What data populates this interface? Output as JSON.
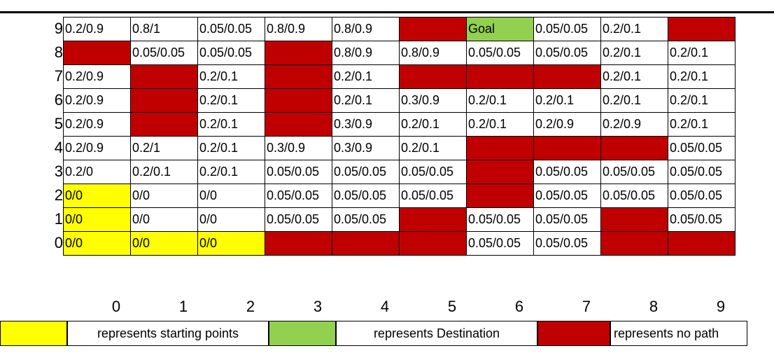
{
  "colors": {
    "start": "#ffff00",
    "goal": "#92d050",
    "blocked": "#c00000",
    "empty": "#ffffff"
  },
  "grid": {
    "row_labels": [
      "9",
      "8",
      "7",
      "6",
      "5",
      "4",
      "3",
      "2",
      "1",
      "0"
    ],
    "col_labels": [
      "0",
      "1",
      "2",
      "3",
      "4",
      "5",
      "6",
      "7",
      "8",
      "9"
    ],
    "rows": [
      [
        {
          "t": "0.2/0.9",
          "k": "n"
        },
        {
          "t": "0.8/1",
          "k": "n"
        },
        {
          "t": "0.05/0.05",
          "k": "n"
        },
        {
          "t": "0.8/0.9",
          "k": "n"
        },
        {
          "t": "0.8/0.9",
          "k": "n"
        },
        {
          "t": "",
          "k": "b"
        },
        {
          "t": "Goal",
          "k": "g"
        },
        {
          "t": "0.05/0.05",
          "k": "n"
        },
        {
          "t": "0.2/0.1",
          "k": "n"
        },
        {
          "t": "",
          "k": "b"
        }
      ],
      [
        {
          "t": "",
          "k": "b"
        },
        {
          "t": "0.05/0.05",
          "k": "n"
        },
        {
          "t": "0.05/0.05",
          "k": "n"
        },
        {
          "t": "",
          "k": "b"
        },
        {
          "t": "0.8/0.9",
          "k": "n"
        },
        {
          "t": "0.8/0.9",
          "k": "n"
        },
        {
          "t": "0.05/0.05",
          "k": "n"
        },
        {
          "t": "0.05/0.05",
          "k": "n"
        },
        {
          "t": "0.2/0.1",
          "k": "n"
        },
        {
          "t": "0.2/0.1",
          "k": "n"
        }
      ],
      [
        {
          "t": "0.2/0.9",
          "k": "n"
        },
        {
          "t": "",
          "k": "b"
        },
        {
          "t": "0.2/0.1",
          "k": "n"
        },
        {
          "t": "",
          "k": "b"
        },
        {
          "t": "0.2/0.1",
          "k": "n"
        },
        {
          "t": "",
          "k": "b"
        },
        {
          "t": "",
          "k": "b"
        },
        {
          "t": "",
          "k": "b"
        },
        {
          "t": "0.2/0.1",
          "k": "n"
        },
        {
          "t": "0.2/0.1",
          "k": "n"
        }
      ],
      [
        {
          "t": "0.2/0.9",
          "k": "n"
        },
        {
          "t": "",
          "k": "b"
        },
        {
          "t": "0.2/0.1",
          "k": "n"
        },
        {
          "t": "",
          "k": "b"
        },
        {
          "t": "0.2/0.1",
          "k": "n"
        },
        {
          "t": "0.3/0.9",
          "k": "n"
        },
        {
          "t": "0.2/0.1",
          "k": "n"
        },
        {
          "t": "0.2/0.1",
          "k": "n"
        },
        {
          "t": "0.2/0.1",
          "k": "n"
        },
        {
          "t": "0.2/0.1",
          "k": "n"
        }
      ],
      [
        {
          "t": "0.2/0.9",
          "k": "n"
        },
        {
          "t": "",
          "k": "b"
        },
        {
          "t": "0.2/0.1",
          "k": "n"
        },
        {
          "t": "",
          "k": "b"
        },
        {
          "t": "0.3/0.9",
          "k": "n"
        },
        {
          "t": "0.2/0.1",
          "k": "n"
        },
        {
          "t": "0.2/0.1",
          "k": "n"
        },
        {
          "t": "0.2/0.9",
          "k": "n"
        },
        {
          "t": "0.2/0.9",
          "k": "n"
        },
        {
          "t": "0.2/0.1",
          "k": "n"
        }
      ],
      [
        {
          "t": "0.2/0.9",
          "k": "n"
        },
        {
          "t": "0.2/1",
          "k": "n"
        },
        {
          "t": "0.2/0.1",
          "k": "n"
        },
        {
          "t": "0.3/0.9",
          "k": "n"
        },
        {
          "t": "0.3/0.9",
          "k": "n"
        },
        {
          "t": "0.2/0.1",
          "k": "n"
        },
        {
          "t": "",
          "k": "b"
        },
        {
          "t": "",
          "k": "b"
        },
        {
          "t": "",
          "k": "b"
        },
        {
          "t": "0.05/0.05",
          "k": "n"
        }
      ],
      [
        {
          "t": "0.2/0",
          "k": "n"
        },
        {
          "t": "0.2/0.1",
          "k": "n"
        },
        {
          "t": "0.2/0.1",
          "k": "n"
        },
        {
          "t": "0.05/0.05",
          "k": "n"
        },
        {
          "t": "0.05/0.05",
          "k": "n"
        },
        {
          "t": "0.05/0.05",
          "k": "n"
        },
        {
          "t": "",
          "k": "b"
        },
        {
          "t": "0.05/0.05",
          "k": "n"
        },
        {
          "t": "0.05/0.05",
          "k": "n"
        },
        {
          "t": "0.05/0.05",
          "k": "n"
        }
      ],
      [
        {
          "t": "0/0",
          "k": "s"
        },
        {
          "t": "0/0",
          "k": "n"
        },
        {
          "t": "0/0",
          "k": "n"
        },
        {
          "t": "0.05/0.05",
          "k": "n"
        },
        {
          "t": "0.05/0.05",
          "k": "n"
        },
        {
          "t": "0.05/0.05",
          "k": "n"
        },
        {
          "t": "",
          "k": "b"
        },
        {
          "t": "0.05/0.05",
          "k": "n"
        },
        {
          "t": "0.05/0.05",
          "k": "n"
        },
        {
          "t": "0.05/0.05",
          "k": "n"
        }
      ],
      [
        {
          "t": "0/0",
          "k": "s"
        },
        {
          "t": "0/0",
          "k": "n"
        },
        {
          "t": "0/0",
          "k": "n"
        },
        {
          "t": "0.05/0.05",
          "k": "n"
        },
        {
          "t": "0.05/0.05",
          "k": "n"
        },
        {
          "t": "",
          "k": "b"
        },
        {
          "t": "0.05/0.05",
          "k": "n"
        },
        {
          "t": "0.05/0.05",
          "k": "n"
        },
        {
          "t": "",
          "k": "b"
        },
        {
          "t": "0.05/0.05",
          "k": "n"
        }
      ],
      [
        {
          "t": "0/0",
          "k": "s"
        },
        {
          "t": "0/0",
          "k": "s"
        },
        {
          "t": "0/0",
          "k": "s"
        },
        {
          "t": "",
          "k": "b"
        },
        {
          "t": "",
          "k": "b"
        },
        {
          "t": "",
          "k": "b"
        },
        {
          "t": "0.05/0.05",
          "k": "n"
        },
        {
          "t": "0.05/0.05",
          "k": "n"
        },
        {
          "t": "",
          "k": "b"
        },
        {
          "t": "",
          "k": "b"
        }
      ]
    ]
  },
  "legend": {
    "start_label": "represents starting points",
    "goal_label": "represents Destination",
    "blocked_label": "represents no path"
  }
}
